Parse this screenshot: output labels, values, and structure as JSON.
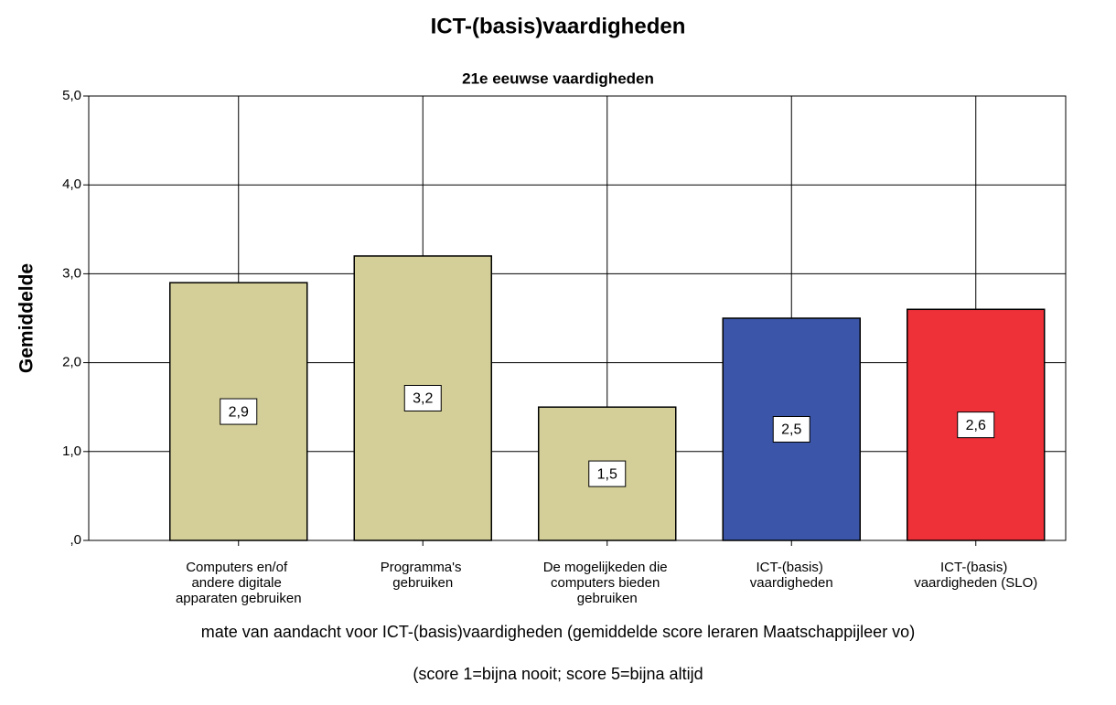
{
  "chart_data": {
    "type": "bar",
    "title": "ICT-(basis)vaardigheden",
    "subtitle": "21e eeuwse vaardigheden",
    "y_label": "Gemiddelde",
    "x_label": "mate van aandacht voor ICT-(basis)vaardigheden (gemiddelde score leraren Maatschappijleer vo)",
    "note": "(score 1=bijna nooit; score 5=bijna altijd",
    "categories": [
      "Computers en/of andere digitale apparaten gebruiken",
      "Programma's gebruiken",
      "De mogelijkeden die computers bieden gebruiken",
      "ICT-(basis) vaardigheden",
      "ICT-(basis) vaardigheden (SLO)"
    ],
    "values": [
      2.9,
      3.2,
      1.5,
      2.5,
      2.6
    ],
    "value_labels": [
      "2,9",
      "3,2",
      "1,5",
      "2,5",
      "2,6"
    ],
    "colors": [
      "#d4cf98",
      "#d4cf98",
      "#d4cf98",
      "#3b56a8",
      "#ee3038"
    ],
    "ylim": [
      0,
      5
    ],
    "yticks": [
      {
        "value": 0,
        "label": ",0"
      },
      {
        "value": 1,
        "label": "1,0"
      },
      {
        "value": 2,
        "label": "2,0"
      },
      {
        "value": 3,
        "label": "3,0"
      },
      {
        "value": 4,
        "label": "4,0"
      },
      {
        "value": 5,
        "label": "5,0"
      }
    ],
    "grid": true
  }
}
